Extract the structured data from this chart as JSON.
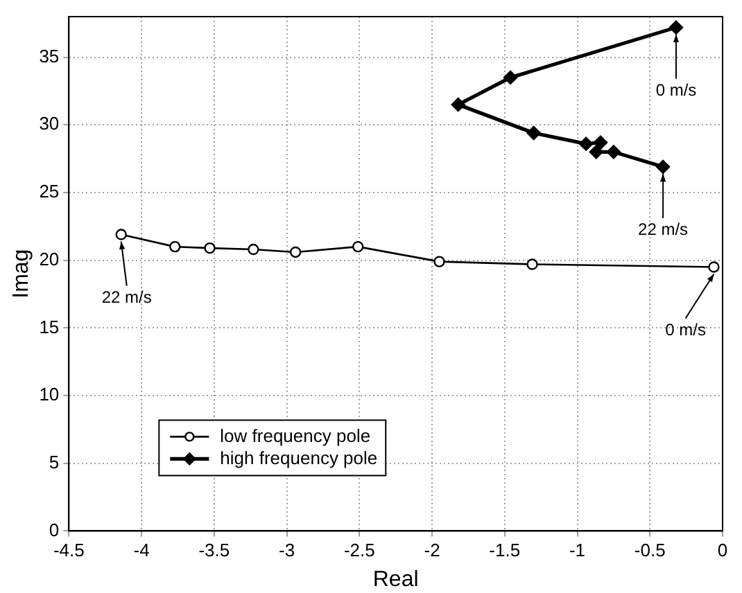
{
  "chart_data": {
    "type": "line",
    "xlabel": "Real",
    "ylabel": "Imag",
    "xlim": [
      -4.5,
      0
    ],
    "xticks": [
      -4.5,
      -4,
      -3.5,
      -3,
      -2.5,
      -2,
      -1.5,
      -1,
      -0.5,
      0
    ],
    "ylim": [
      0,
      38
    ],
    "yticks": [
      0,
      5,
      10,
      15,
      20,
      25,
      30,
      35
    ],
    "grid": true,
    "legend": "bottom left",
    "line_style": "solid",
    "series": [
      {
        "name": "low frequency pole",
        "color": "#000000",
        "marker": "circle",
        "x": [
          -4.14,
          -3.77,
          -3.53,
          -3.23,
          -2.94,
          -2.51,
          -1.95,
          -1.31,
          -0.06
        ],
        "values": [
          21.9,
          21.0,
          20.9,
          20.8,
          20.6,
          21.0,
          19.9,
          19.7,
          19.5
        ]
      },
      {
        "name": "high frequency pole",
        "color": "#000000",
        "marker": "diamond",
        "x": [
          -0.32,
          -1.46,
          -1.82,
          -1.3,
          -0.94,
          -0.84,
          -0.87,
          -0.75,
          -0.41
        ],
        "values": [
          37.2,
          33.5,
          31.5,
          29.4,
          28.6,
          28.7,
          28.0,
          28.0,
          26.9
        ]
      }
    ],
    "annotations": [
      {
        "text": "0 m/s",
        "x": -0.32,
        "y": 37.2
      },
      {
        "text": "22 m/s",
        "x": -0.41,
        "y": 26.9
      },
      {
        "text": "22 m/s",
        "x": -4.14,
        "y": 21.9
      },
      {
        "text": "0 m/s",
        "x": -0.06,
        "y": 19.5
      }
    ]
  }
}
